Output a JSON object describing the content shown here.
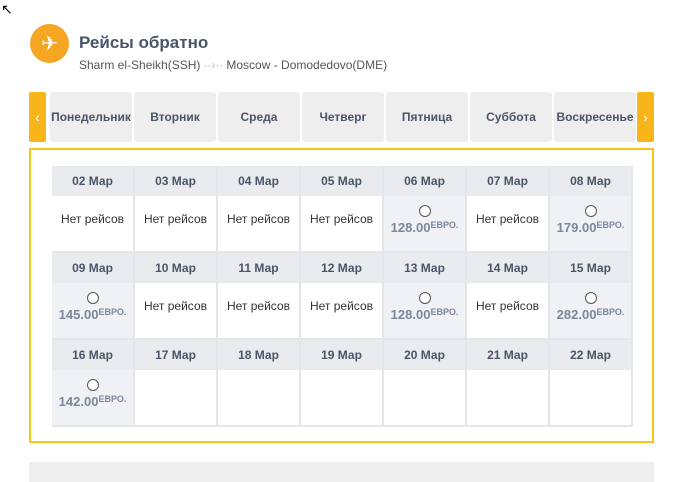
{
  "header": {
    "title": "Рейсы обратно",
    "from": "Sharm el-Sheikh(SSH)",
    "to": "Moscow - Domodedovo(DME)",
    "icon": "plane-arrival-icon"
  },
  "weekdays": [
    "Понедельник",
    "Вторник",
    "Среда",
    "Четверг",
    "Пятница",
    "Суббота",
    "Воскресенье"
  ],
  "no_flights": "Нет рейсов",
  "currency": "ЕВРО.",
  "days": [
    {
      "date": "02 Мар",
      "price": null
    },
    {
      "date": "03 Мар",
      "price": null
    },
    {
      "date": "04 Мар",
      "price": null
    },
    {
      "date": "05 Мар",
      "price": null
    },
    {
      "date": "06 Мар",
      "price": "128.00"
    },
    {
      "date": "07 Мар",
      "price": null
    },
    {
      "date": "08 Мар",
      "price": "179.00"
    },
    {
      "date": "09 Мар",
      "price": "145.00"
    },
    {
      "date": "10 Мар",
      "price": null
    },
    {
      "date": "11 Мар",
      "price": null
    },
    {
      "date": "12 Мар",
      "price": null
    },
    {
      "date": "13 Мар",
      "price": "128.00"
    },
    {
      "date": "14 Мар",
      "price": null
    },
    {
      "date": "15 Мар",
      "price": "282.00"
    },
    {
      "date": "16 Мар",
      "price": "142.00"
    },
    {
      "date": "17 Мар",
      "empty": true
    },
    {
      "date": "18 Мар",
      "empty": true
    },
    {
      "date": "19 Мар",
      "empty": true
    },
    {
      "date": "20 Мар",
      "empty": true
    },
    {
      "date": "21 Мар",
      "empty": true
    },
    {
      "date": "22 Мар",
      "empty": true
    }
  ],
  "colors": {
    "accent": "#f5a623",
    "border": "#f5c518",
    "price": "#7a879c"
  }
}
